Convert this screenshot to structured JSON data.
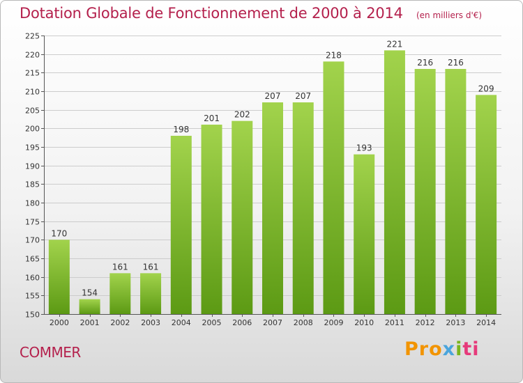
{
  "header": {
    "title": "Dotation Globale de Fonctionnement de 2000 à 2014",
    "unit": "(en milliers d'€)"
  },
  "footer": {
    "commune": "COMMER",
    "logo_text": "Proxiti",
    "logo_parts": [
      "Pro",
      "x",
      "i",
      "ti"
    ]
  },
  "colors": {
    "title": "#b4204c",
    "bar_top": "#a2d34c",
    "bar_bottom": "#5c9a14",
    "grid": "#cccccc"
  },
  "chart_data": {
    "type": "bar",
    "title": "Dotation Globale de Fonctionnement de 2000 à 2014",
    "subtitle": "(en milliers d'€)",
    "xlabel": "",
    "ylabel": "",
    "categories": [
      "2000",
      "2001",
      "2002",
      "2003",
      "2004",
      "2005",
      "2006",
      "2007",
      "2008",
      "2009",
      "2010",
      "2011",
      "2012",
      "2013",
      "2014"
    ],
    "values": [
      170,
      154,
      161,
      161,
      198,
      201,
      202,
      207,
      207,
      218,
      193,
      221,
      216,
      216,
      209
    ],
    "ylim": [
      150,
      225
    ],
    "yticks": [
      150,
      155,
      160,
      165,
      170,
      175,
      180,
      185,
      190,
      195,
      200,
      205,
      210,
      215,
      220,
      225
    ],
    "grid": true,
    "legend": "none"
  }
}
